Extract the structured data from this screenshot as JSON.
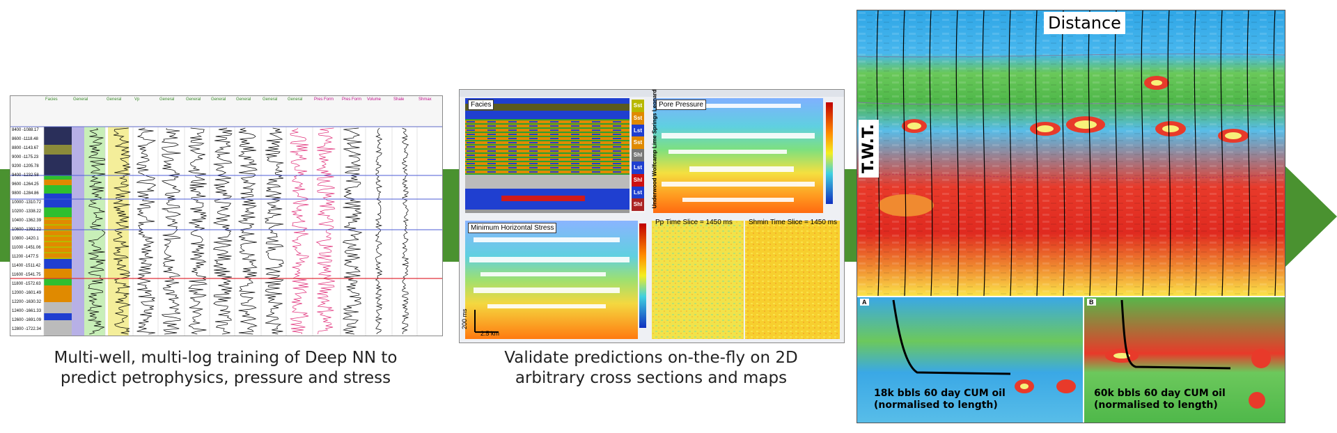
{
  "colors": {
    "green": "#4a9230",
    "accent": "#4a9230"
  },
  "panel1": {
    "caption_line1": "Multi-well, multi-log training of Deep NN to",
    "caption_line2": "predict petrophysics, pressure and stress",
    "track_headers": [
      "Facies",
      "General",
      "General",
      "Vp",
      "General",
      "General",
      "General",
      "General",
      "General",
      "General",
      "Pres Form",
      "Pres Form",
      "Volume",
      "Shale",
      "Shmax"
    ],
    "depths": [
      "8400 -1088.17",
      "8600 -1118.48",
      "8800 -1143.67",
      "9000 -1175.23",
      "9200 -1205.78",
      "9400 -1232.58",
      "9600 -1264.25",
      "9800 -1284.86",
      "10000 -1310.72",
      "10200 -1338.22",
      "10400 -1362.39",
      "10600 -1392.22",
      "10800 -1420.1",
      "11000 -1451.06",
      "11200 -1477.5",
      "11400 -1511.42",
      "11600 -1541.75",
      "11800 -1572.63",
      "12000 -1601.49",
      "12200 -1630.32",
      "12400 -1661.33",
      "12600 -1691.09",
      "12800 -1722.34"
    ]
  },
  "panel2": {
    "caption_line1": "Validate predictions on-the-fly on 2D",
    "caption_line2": "arbitrary cross sections and maps",
    "titles": {
      "facies": "Facies",
      "pore": "Pore Pressure",
      "minh": "Minimum Horizontal Stress",
      "pp": "Pp Time Slice = 1450 ms",
      "shmin": "Shmin Time Slice = 1450 ms"
    },
    "legend": [
      "Sst",
      "Sst",
      "Lst",
      "Sst",
      "Shl",
      "Lst",
      "Shl",
      "Lst",
      "Shl"
    ],
    "legend_colors": [
      "#b8b800",
      "#e08a00",
      "#1f3fd0",
      "#e08a00",
      "#777777",
      "#1f3fd0",
      "#cc1111",
      "#1f3fd0",
      "#aa2222"
    ],
    "legend_side_label": "Underwood Wolfcamp Lime Springs Leonard",
    "scale_time": "200 ms",
    "scale_dist": "2.5 km"
  },
  "panel3": {
    "title_distance": "Distance",
    "title_twt": "T.W.T.",
    "tag_a": "A",
    "tag_b": "B",
    "annot_a_line1": "18k bbls 60 day CUM oil",
    "annot_a_line2": "(normalised to length)",
    "annot_b_line1": "60k bbls 60 day CUM oil",
    "annot_b_line2": "(normalised to length)"
  }
}
